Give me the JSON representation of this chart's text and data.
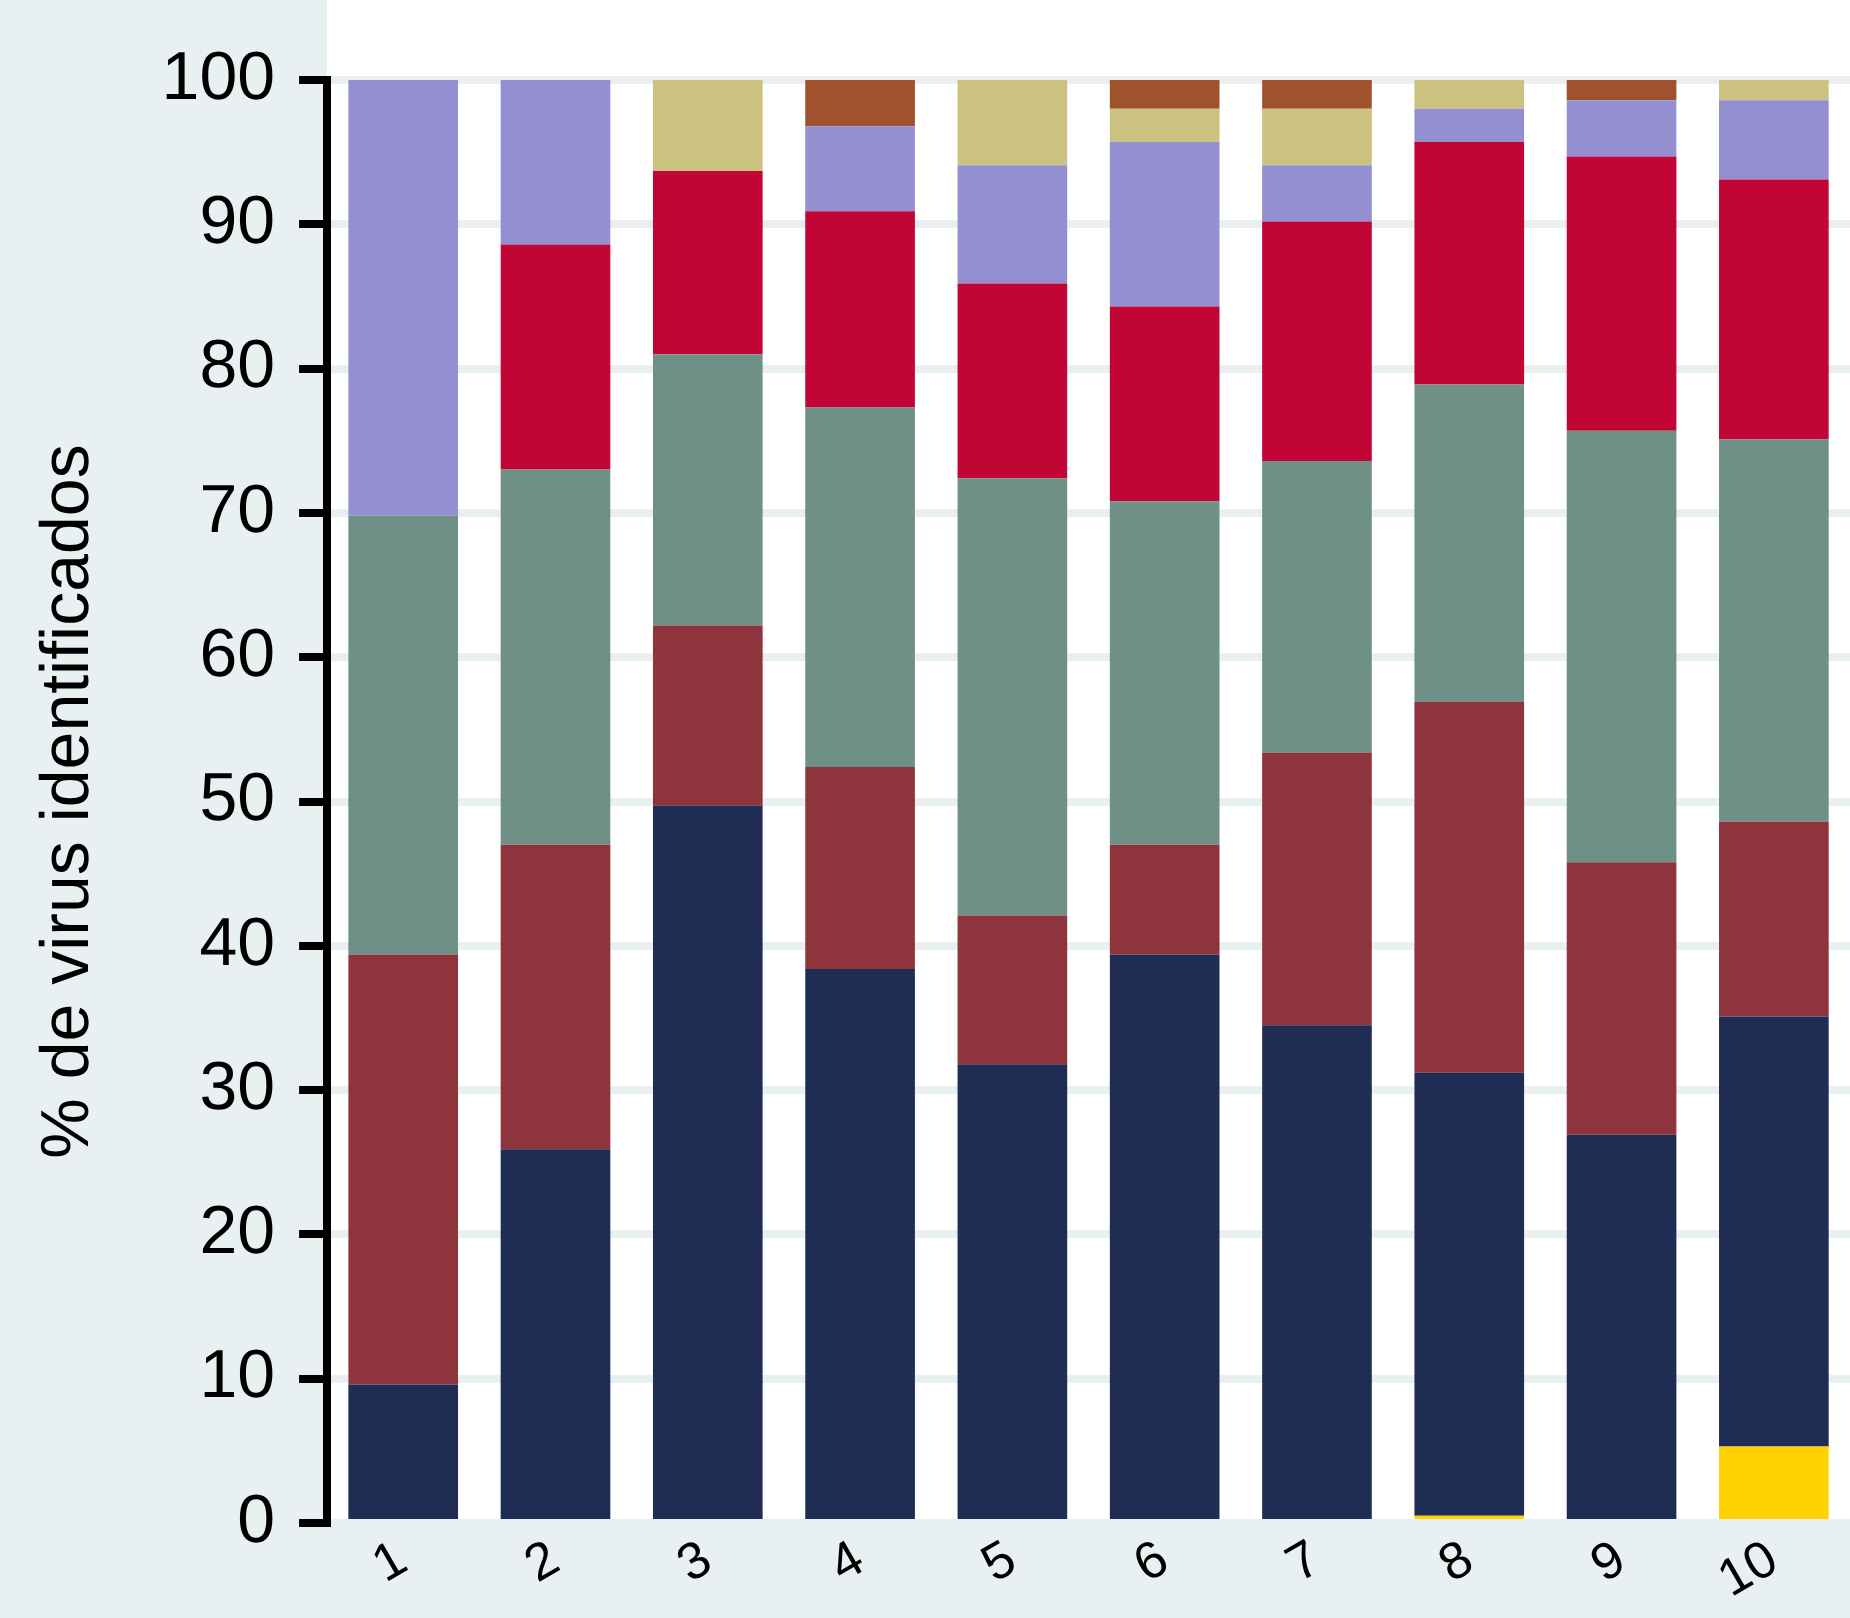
{
  "chart_data": {
    "type": "bar",
    "stacked": true,
    "ylabel": "% de virus identificados",
    "categories": [
      "1",
      "2",
      "3",
      "4",
      "5",
      "6",
      "7",
      "8",
      "9",
      "10"
    ],
    "series": [
      {
        "color": "#ffd200",
        "values": [
          0,
          0,
          0,
          0,
          0,
          0,
          0,
          0.5,
          0,
          5.3
        ]
      },
      {
        "color": "#1f2c53",
        "values": [
          9.6,
          25.9,
          49.7,
          38.4,
          31.8,
          39.4,
          34.5,
          30.7,
          26.9,
          29.8
        ]
      },
      {
        "color": "#8e343c",
        "values": [
          29.8,
          21.1,
          12.5,
          14.0,
          10.3,
          7.6,
          18.9,
          25.7,
          18.9,
          13.5
        ]
      },
      {
        "color": "#6e9086",
        "values": [
          30.4,
          26.0,
          18.8,
          24.9,
          30.3,
          23.8,
          20.2,
          22.0,
          29.9,
          26.5
        ]
      },
      {
        "color": "#c10534",
        "values": [
          0,
          15.6,
          12.7,
          13.6,
          13.5,
          13.5,
          16.6,
          16.8,
          19.0,
          18.0
        ]
      },
      {
        "color": "#938fd0",
        "values": [
          30.2,
          11.4,
          0,
          5.9,
          8.2,
          11.4,
          3.9,
          2.3,
          3.9,
          5.5
        ]
      },
      {
        "color": "#cac27e",
        "values": [
          0,
          0,
          6.3,
          0,
          5.9,
          2.3,
          3.9,
          2.0,
          0,
          1.4
        ]
      },
      {
        "color": "#a0522d",
        "values": [
          0,
          0,
          0,
          3.2,
          0,
          2.0,
          2.0,
          0,
          1.4,
          0
        ]
      }
    ],
    "ylim": [
      0,
      100
    ],
    "yticks": [
      0,
      10,
      20,
      30,
      40,
      50,
      60,
      70,
      80,
      90,
      100
    ],
    "grid": "y",
    "legend": false
  }
}
